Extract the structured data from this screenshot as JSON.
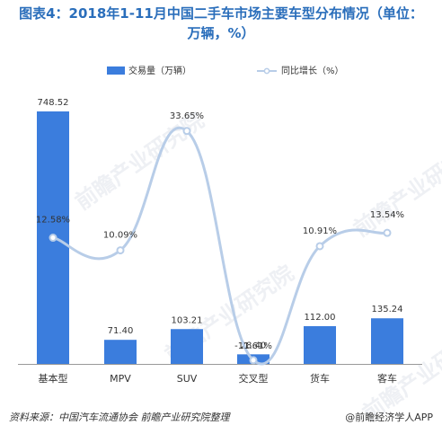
{
  "title_line1": "图表4：2018年1-11月中国二手车市场主要车型分布情况（单位：",
  "title_line2": "万辆，%）",
  "footer": {
    "source": "资料来源：中国汽车流通协会  前瞻产业研究院整理",
    "brand": "@前瞻经济学人APP"
  },
  "watermark_text": "前瞻产业研究院",
  "colors": {
    "bar": "#3b7ddd",
    "line": "#b8cde8",
    "marker": "#b8cde8",
    "title": "#2a6ebb"
  },
  "chart_data": {
    "type": "bar",
    "categories": [
      "基本型",
      "MPV",
      "SUV",
      "交叉型",
      "货车",
      "客车"
    ],
    "series": [
      {
        "name": "交易量（万辆）",
        "type": "bar",
        "values": [
          748.52,
          71.4,
          103.21,
          28.4,
          112.0,
          135.24
        ],
        "labels": [
          "748.52",
          "71.40",
          "103.21",
          "28.40",
          "112.00",
          "135.24"
        ]
      },
      {
        "name": "同比增长（%）",
        "type": "line",
        "smooth": true,
        "values": [
          12.58,
          10.09,
          33.65,
          -11.61,
          10.91,
          13.54
        ],
        "labels": [
          "12.58%",
          "10.09%",
          "33.65%",
          "-11.61%",
          "10.91%",
          "13.54%"
        ]
      }
    ],
    "bar_ylim": [
      0,
      748.52
    ],
    "line_ylim": [
      -15,
      40
    ],
    "grid": false,
    "legend": "top"
  }
}
